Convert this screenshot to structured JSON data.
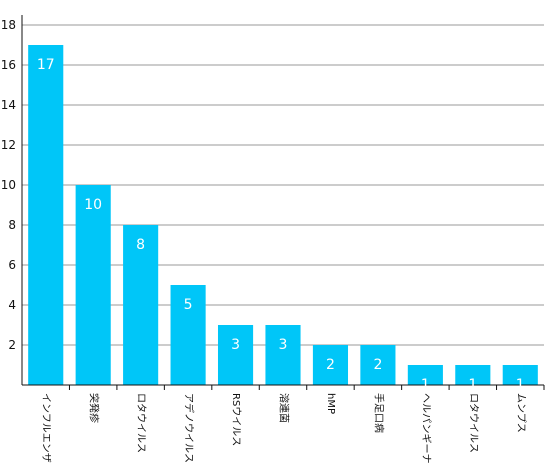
{
  "chart_data": {
    "type": "bar",
    "categories": [
      "インフルエンザ",
      "突発疹",
      "ロタウイルス",
      "アデノウイルス",
      "RSウイルス",
      "溶連菌",
      "hMP",
      "手足口病",
      "ヘルパンギーナ",
      "ロタウイルス",
      "ムンプス"
    ],
    "values": [
      17,
      10,
      8,
      5,
      3,
      3,
      2,
      2,
      1,
      1,
      1
    ],
    "data_labels": [
      "17",
      "10",
      "8",
      "5",
      "3",
      "3",
      "2",
      "2",
      "1",
      "1",
      "1"
    ],
    "y_ticks": [
      "2",
      "4",
      "6",
      "8",
      "10",
      "12",
      "14",
      "16",
      "18"
    ],
    "ylim": [
      0,
      18
    ],
    "grid": true,
    "title": "",
    "xlabel": "",
    "ylabel": "",
    "colors": {
      "bar": "#00C6F8",
      "grid": "#9a9a9a",
      "axis": "#111111",
      "data_label": "#ffffff"
    }
  }
}
